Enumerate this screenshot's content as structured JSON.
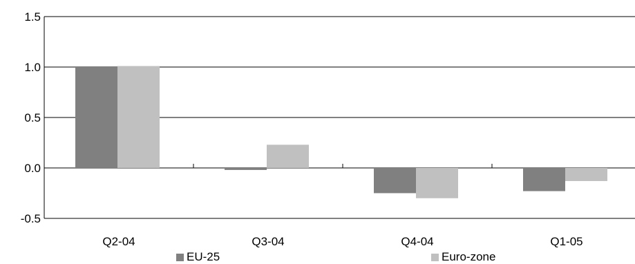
{
  "chart_data": {
    "type": "bar",
    "title": "",
    "xlabel": "",
    "ylabel": "",
    "categories": [
      "Q2-04",
      "Q3-04",
      "Q4-04",
      "Q1-05"
    ],
    "series": [
      {
        "name": "EU-25",
        "color": "#808080",
        "values": [
          1.0,
          -0.02,
          -0.25,
          -0.23
        ]
      },
      {
        "name": "Euro-zone",
        "color": "#c0c0c0",
        "values": [
          1.01,
          0.23,
          -0.3,
          -0.13
        ]
      }
    ],
    "ylim": [
      -0.5,
      1.5
    ],
    "yticks": [
      "1.5",
      "1.0",
      "0.5",
      "0.0",
      "-0.5"
    ],
    "ytick_values": [
      1.5,
      1.0,
      0.5,
      0.0,
      -0.5
    ],
    "grid": "horizontal",
    "legend_position": "bottom"
  }
}
